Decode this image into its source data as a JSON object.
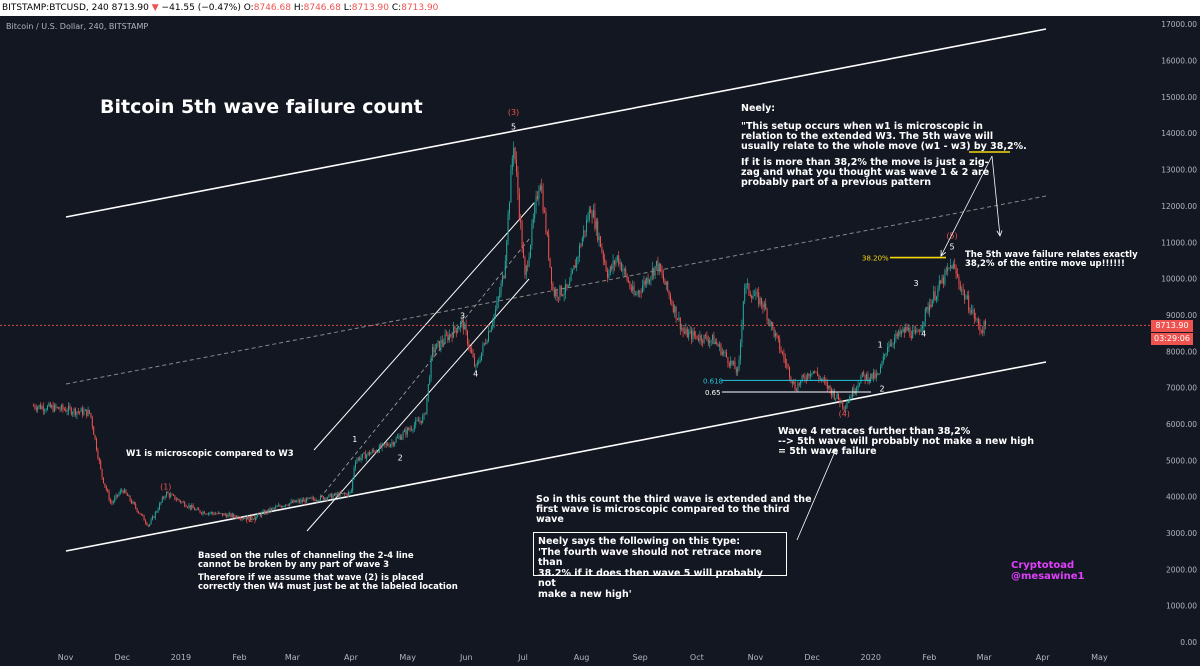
{
  "header": {
    "symbol": "BITSTAMP:BTCUSD, 240",
    "close_val": "8713.90",
    "change": "−41.55 (−0.47%)",
    "open_label": "O:",
    "open_val": "8746.68",
    "high_label": "H:",
    "high_val": "8746.68",
    "low_label": "L:",
    "low_val": "8713.90",
    "close_label": "C:",
    "close2_val": "8713.90"
  },
  "subtitle": "Bitcoin / U.S. Dollar, 240, BITSTAMP",
  "price_tag": {
    "price": "8713.90",
    "countdown": "03:29:06"
  },
  "annotations": {
    "title": "Bitcoin 5th wave failure count",
    "neely_heading": "Neely:",
    "neely_quote_1": "\"This setup occurs when w1 is microscopic in",
    "neely_quote_2": "relation to the extended W3. The 5th wave will",
    "neely_quote_3": "usually relate to the whole move (w1 - w3) by 38,2%.",
    "neely_quote_4": "If it is more than 38,2% the move is just a zig-",
    "neely_quote_5": "zag and what you thought was wave 1 & 2 are",
    "neely_quote_6": "probably part of a previous pattern",
    "failure_1": "The 5th wave failure relates exactly",
    "failure_2": "38,2% of the entire move up!!!!!!",
    "w4_1": "Wave 4 retraces further than 38,2%",
    "w4_2": "--> 5th wave will probably not make a new high",
    "w4_3": "= 5th wave failure",
    "w1_micro": "W1 is microscopic compared to W3",
    "third_1": "So in this count the third wave is extended and the",
    "third_2": "first wave is microscopic compared to the third",
    "third_3": "wave",
    "box_1": "Neely says the following on this type:",
    "box_2": "'The fourth wave should not retrace more than",
    "box_3": "38.2% if it does then wave 5 will probably not",
    "box_4": "make a new high'",
    "rules_1": "Based on the rules of channeling the 2-4 line",
    "rules_2": "cannot be broken by any part of wave 3",
    "rules_3": "Therefore if we assume that wave (2) is placed",
    "rules_4": "correctly then W4 must just be at the labeled location",
    "credit_1": "Cryptotoad",
    "credit_2": "@mesawine1"
  },
  "chart_data": {
    "type": "candlestick",
    "title": "Bitcoin 5th wave failure count",
    "symbol": "BITSTAMP:BTCUSD",
    "timeframe": "240",
    "x_ticks": [
      "Nov",
      "Dec",
      "2019",
      "Feb",
      "Mar",
      "Apr",
      "May",
      "Jun",
      "Jul",
      "Aug",
      "Sep",
      "Oct",
      "Nov",
      "Dec",
      "2020",
      "Feb",
      "Mar",
      "Apr",
      "May"
    ],
    "y_ticks": [
      "17000.00",
      "16000.00",
      "15000.00",
      "14000.00",
      "13000.00",
      "12000.00",
      "11000.00",
      "10000.00",
      "9000.00",
      "8000.00",
      "7000.00",
      "6000.00",
      "5000.00",
      "4000.00",
      "3000.00",
      "2000.00",
      "1000.00",
      "0.00"
    ],
    "ylim": [
      0,
      17300
    ],
    "price_path": [
      {
        "date": "2018-10-15",
        "price": 6500
      },
      {
        "date": "2018-11-01",
        "price": 6400
      },
      {
        "date": "2018-11-14",
        "price": 6300
      },
      {
        "date": "2018-11-20",
        "price": 4600
      },
      {
        "date": "2018-11-25",
        "price": 3800
      },
      {
        "date": "2018-12-01",
        "price": 4200
      },
      {
        "date": "2018-12-15",
        "price": 3200
      },
      {
        "date": "2018-12-24",
        "price": 4100
      },
      {
        "date": "2019-01-10",
        "price": 3600
      },
      {
        "date": "2019-02-07",
        "price": 3400
      },
      {
        "date": "2019-02-25",
        "price": 3800
      },
      {
        "date": "2019-03-20",
        "price": 4000
      },
      {
        "date": "2019-04-01",
        "price": 4100
      },
      {
        "date": "2019-04-03",
        "price": 5000
      },
      {
        "date": "2019-04-23",
        "price": 5500
      },
      {
        "date": "2019-05-10",
        "price": 6200
      },
      {
        "date": "2019-05-14",
        "price": 8000
      },
      {
        "date": "2019-05-30",
        "price": 8800
      },
      {
        "date": "2019-06-06",
        "price": 7500
      },
      {
        "date": "2019-06-17",
        "price": 9200
      },
      {
        "date": "2019-06-21",
        "price": 10200
      },
      {
        "date": "2019-06-26",
        "price": 13800
      },
      {
        "date": "2019-07-02",
        "price": 10000
      },
      {
        "date": "2019-07-10",
        "price": 12800
      },
      {
        "date": "2019-07-17",
        "price": 9600
      },
      {
        "date": "2019-07-25",
        "price": 9700
      },
      {
        "date": "2019-08-06",
        "price": 12000
      },
      {
        "date": "2019-08-15",
        "price": 10100
      },
      {
        "date": "2019-08-20",
        "price": 10600
      },
      {
        "date": "2019-08-29",
        "price": 9500
      },
      {
        "date": "2019-09-10",
        "price": 10400
      },
      {
        "date": "2019-09-24",
        "price": 8500
      },
      {
        "date": "2019-10-10",
        "price": 8300
      },
      {
        "date": "2019-10-23",
        "price": 7400
      },
      {
        "date": "2019-10-26",
        "price": 9800
      },
      {
        "date": "2019-11-05",
        "price": 9300
      },
      {
        "date": "2019-11-22",
        "price": 7000
      },
      {
        "date": "2019-12-01",
        "price": 7500
      },
      {
        "date": "2019-12-18",
        "price": 6500
      },
      {
        "date": "2019-12-27",
        "price": 7300
      },
      {
        "date": "2020-01-05",
        "price": 7300
      },
      {
        "date": "2020-01-10",
        "price": 8200
      },
      {
        "date": "2020-01-20",
        "price": 8600
      },
      {
        "date": "2020-01-25",
        "price": 8400
      },
      {
        "date": "2020-02-01",
        "price": 9300
      },
      {
        "date": "2020-02-13",
        "price": 10400
      },
      {
        "date": "2020-02-19",
        "price": 9600
      },
      {
        "date": "2020-02-28",
        "price": 8600
      },
      {
        "date": "2020-03-02",
        "price": 8713
      }
    ],
    "wave_labels": [
      {
        "label": "(1)",
        "date": "2018-12-24",
        "price": 4200
      },
      {
        "label": "(2)",
        "date": "2019-02-07",
        "price": 3300
      },
      {
        "label": "1",
        "date": "2019-04-03",
        "price": 5500
      },
      {
        "label": "2",
        "date": "2019-04-27",
        "price": 5000
      },
      {
        "label": "3",
        "date": "2019-05-30",
        "price": 8900
      },
      {
        "label": "4",
        "date": "2019-06-06",
        "price": 7300
      },
      {
        "label": "(3)",
        "date": "2019-06-26",
        "price": 14500
      },
      {
        "label": "5",
        "date": "2019-06-26",
        "price": 14100
      },
      {
        "label": "1",
        "date": "2020-01-06",
        "price": 8100
      },
      {
        "label": "2",
        "date": "2020-01-07",
        "price": 6900
      },
      {
        "label": "(4)",
        "date": "2019-12-18",
        "price": 6200
      },
      {
        "label": "3",
        "date": "2020-01-25",
        "price": 9800
      },
      {
        "label": "4",
        "date": "2020-01-29",
        "price": 8400
      },
      {
        "label": "(5)",
        "date": "2020-02-13",
        "price": 11100
      },
      {
        "label": "5",
        "date": "2020-02-13",
        "price": 10800
      }
    ],
    "fib_levels": [
      {
        "label": "38.20%",
        "price": 10580
      },
      {
        "label": "0.618",
        "price": 7200
      },
      {
        "label": "0.65",
        "price": 6880
      }
    ],
    "current_price": 8713.9,
    "grid": false
  }
}
